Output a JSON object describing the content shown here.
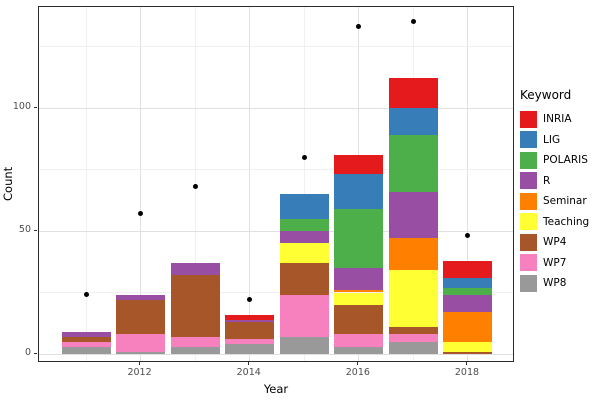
{
  "chart_data": {
    "type": "bar",
    "stacked": true,
    "title": "",
    "xlabel": "Year",
    "ylabel": "Count",
    "legend_title": "Keyword",
    "legend_position": "right",
    "grid": true,
    "years": [
      2011,
      2012,
      2013,
      2014,
      2015,
      2016,
      2017,
      2018
    ],
    "x_tick_labels": [
      "2012",
      "2014",
      "2016",
      "2018"
    ],
    "x_tick_years": [
      2012,
      2014,
      2016,
      2018
    ],
    "y_tick_labels": [
      "0",
      "50",
      "100"
    ],
    "y_ticks": [
      0,
      50,
      100
    ],
    "y_minor_ticks": [
      25,
      75,
      125
    ],
    "ylim": [
      0,
      141
    ],
    "stack_order_bottom_to_top": [
      "WP8",
      "WP7",
      "WP4",
      "Teaching",
      "Seminar",
      "R",
      "POLARIS",
      "LIG",
      "INRIA"
    ],
    "series": [
      {
        "name": "INRIA",
        "color": "#E41A1C",
        "values": [
          0,
          0,
          0,
          2,
          0,
          8,
          12,
          7
        ]
      },
      {
        "name": "LIG",
        "color": "#377EB8",
        "values": [
          0,
          0,
          0,
          0,
          10,
          14,
          11,
          4
        ]
      },
      {
        "name": "POLARIS",
        "color": "#4DAF4A",
        "values": [
          0,
          0,
          0,
          0,
          5,
          24,
          23,
          3
        ]
      },
      {
        "name": "R",
        "color": "#984EA3",
        "values": [
          2,
          2,
          5,
          1,
          5,
          9,
          19,
          7
        ]
      },
      {
        "name": "Seminar",
        "color": "#FF7F00",
        "values": [
          0,
          0,
          0,
          0,
          0,
          1,
          13,
          12
        ]
      },
      {
        "name": "Teaching",
        "color": "#FFFF33",
        "values": [
          0,
          0,
          0,
          0,
          8,
          5,
          23,
          4
        ]
      },
      {
        "name": "WP4",
        "color": "#A65628",
        "values": [
          2,
          14,
          25,
          7,
          13,
          12,
          3,
          1
        ]
      },
      {
        "name": "WP7",
        "color": "#F781BF",
        "values": [
          2,
          7,
          4,
          2,
          17,
          5,
          3,
          0
        ]
      },
      {
        "name": "WP8",
        "color": "#999999",
        "values": [
          3,
          1,
          3,
          4,
          7,
          3,
          5,
          0
        ]
      }
    ],
    "bar_totals": [
      9,
      24,
      37,
      16,
      65,
      81,
      112,
      38
    ],
    "points": {
      "marker": "circle",
      "color": "#000000",
      "values": [
        24,
        57,
        68,
        22,
        80,
        133,
        135,
        48
      ]
    }
  },
  "style": {
    "panel_background": "#FFFFFF",
    "panel_border": "#2B2B2B",
    "grid_major_color": "#E0E0E0",
    "grid_minor_color": "#F0F0F0",
    "tick_label_color": "#4D4D4D"
  }
}
